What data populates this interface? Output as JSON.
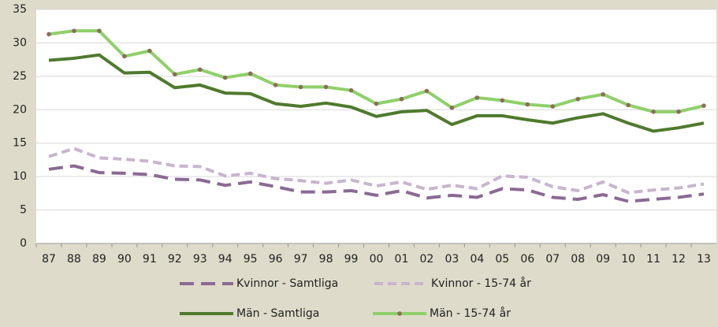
{
  "chart_data": {
    "type": "line",
    "categories": [
      "87",
      "88",
      "89",
      "90",
      "91",
      "92",
      "93",
      "94",
      "95",
      "96",
      "97",
      "98",
      "99",
      "00",
      "01",
      "02",
      "03",
      "04",
      "05",
      "06",
      "07",
      "08",
      "09",
      "10",
      "11",
      "12",
      "13"
    ],
    "series": [
      {
        "name": "Kvinnor - Samtliga",
        "color": "#8a6a93",
        "style": "long-dash",
        "marker": false,
        "values": [
          11.1,
          11.6,
          10.6,
          10.5,
          10.3,
          9.6,
          9.5,
          8.7,
          9.2,
          8.5,
          7.7,
          7.7,
          7.9,
          7.2,
          7.9,
          6.8,
          7.2,
          6.9,
          8.2,
          8.0,
          6.9,
          6.6,
          7.3,
          6.3,
          6.6,
          6.9,
          7.4
        ]
      },
      {
        "name": "Kvinnor - 15-74 år",
        "color": "#c8b5ce",
        "style": "dash",
        "marker": false,
        "values": [
          13.0,
          14.2,
          12.8,
          12.6,
          12.3,
          11.6,
          11.5,
          10.1,
          10.5,
          9.7,
          9.4,
          9.0,
          9.5,
          8.6,
          9.2,
          8.1,
          8.7,
          8.2,
          10.1,
          9.9,
          8.5,
          7.9,
          9.2,
          7.6,
          8.0,
          8.3,
          8.9
        ]
      },
      {
        "name": "Män - Samtliga",
        "color": "#4f7a2d",
        "style": "solid",
        "marker": false,
        "values": [
          27.4,
          27.7,
          28.2,
          25.5,
          25.6,
          23.3,
          23.7,
          22.5,
          22.4,
          20.9,
          20.5,
          21.0,
          20.4,
          19.0,
          19.7,
          19.9,
          17.8,
          19.1,
          19.1,
          18.5,
          18.0,
          18.8,
          19.4,
          18.0,
          16.8,
          17.3,
          18.0
        ]
      },
      {
        "name": "Män - 15-74 år",
        "color": "#8fd06a",
        "style": "solid",
        "marker": true,
        "marker_color": "#8b6e5a",
        "values": [
          31.3,
          31.8,
          31.8,
          28.0,
          28.8,
          25.3,
          26.0,
          24.8,
          25.4,
          23.7,
          23.4,
          23.4,
          22.9,
          20.9,
          21.6,
          22.8,
          20.3,
          21.8,
          21.4,
          20.8,
          20.5,
          21.6,
          22.3,
          20.7,
          19.7,
          19.7,
          20.6
        ]
      }
    ],
    "ylim": [
      0,
      35
    ],
    "yticks": [
      0,
      5,
      10,
      15,
      20,
      25,
      30,
      35
    ],
    "grid": true
  }
}
